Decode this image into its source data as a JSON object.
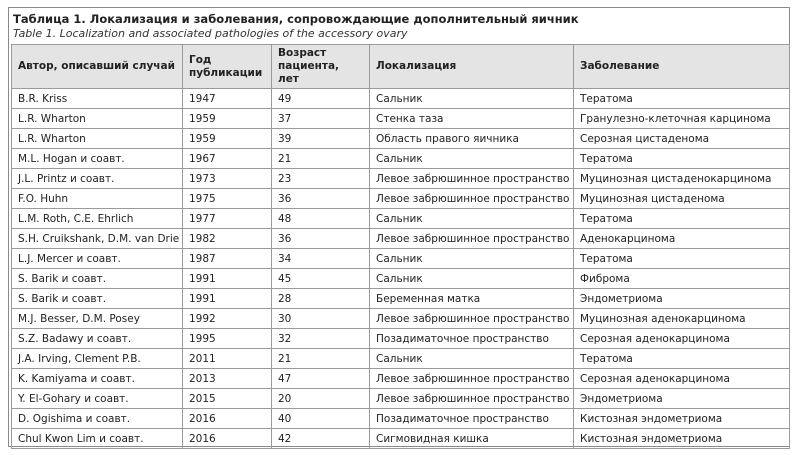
{
  "header": {
    "title": "Таблица 1. Локализация и заболевания, сопровождающие дополнительный яичник",
    "subtitle": "Table 1. Localization and associated pathologies of the accessory ovary"
  },
  "table": {
    "columns": [
      "Автор, описавший случай",
      "Год\nпубликации",
      "Возраст\nпациента, лет",
      "Локализация",
      "Заболевание"
    ],
    "rows": [
      [
        "B.R. Kriss",
        1947,
        49,
        "Сальник",
        "Тератома"
      ],
      [
        "L.R. Wharton",
        1959,
        37,
        "Стенка таза",
        "Гранулезно-клеточная карцинома"
      ],
      [
        "L.R. Wharton",
        1959,
        39,
        "Область правого яичника",
        "Серозная цистаденома"
      ],
      [
        "M.L. Hogan и соавт.",
        1967,
        21,
        "Сальник",
        "Тератома"
      ],
      [
        "J.L. Printz и соавт.",
        1973,
        23,
        "Левое забрюшинное пространство",
        "Муцинозная цистаденокарцинома"
      ],
      [
        "F.O. Huhn",
        1975,
        36,
        "Левое забрюшинное пространство",
        "Муцинозная цистаденома"
      ],
      [
        "L.M. Roth, C.E. Ehrlich",
        1977,
        48,
        "Сальник",
        "Тератома"
      ],
      [
        "S.H. Cruikshank, D.M. van Drie",
        1982,
        36,
        "Левое забрюшинное пространство",
        "Аденокарцинома"
      ],
      [
        "L.J. Mercer и соавт.",
        1987,
        34,
        "Сальник",
        "Тератома"
      ],
      [
        "S. Barik и соавт.",
        1991,
        45,
        "Сальник",
        "Фиброма"
      ],
      [
        "S. Barik и соавт.",
        1991,
        28,
        "Беременная матка",
        "Эндометриома"
      ],
      [
        "M.J. Besser, D.M. Posey",
        1992,
        30,
        "Левое забрюшинное пространство",
        "Муцинозная аденокарцинома"
      ],
      [
        "S.Z. Badawy и соавт.",
        1995,
        32,
        "Позадиматочное пространство",
        "Серозная аденокарцинома"
      ],
      [
        "J.A. Irving, Clement P.B.",
        2011,
        21,
        "Сальник",
        "Тератома"
      ],
      [
        "K. Kamiyama и соавт.",
        2013,
        47,
        "Левое забрюшинное пространство",
        "Серозная аденокарцинома"
      ],
      [
        "Y. El-Gohary и соавт.",
        2015,
        20,
        "Левое забрюшинное пространство",
        "Эндометриома"
      ],
      [
        "D. Ogishima и соавт.",
        2016,
        40,
        "Позадиматочное пространство",
        "Кистозная эндометриома"
      ],
      [
        "Chul Kwon Lim и соавт.",
        2016,
        42,
        "Сигмовидная кишка",
        "Кистозная эндометриома"
      ]
    ]
  }
}
